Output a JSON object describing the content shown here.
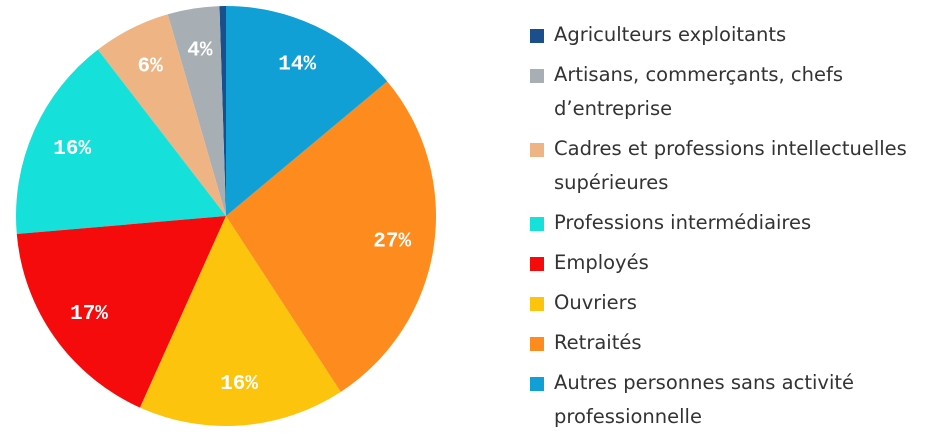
{
  "chart_data": {
    "type": "pie",
    "categories": [
      "Agriculteurs exploitants",
      "Artisans, commerçants, chefs d’entreprise",
      "Cadres et professions intellectuelles supérieures",
      "Professions intermédiaires",
      "Employés",
      "Ouvriers",
      "Retraités",
      "Autres personnes sans activité professionnelle"
    ],
    "values": [
      0.5,
      4,
      6,
      16,
      17,
      16,
      27,
      14
    ],
    "value_labels": [
      null,
      "4%",
      "6%",
      "16%",
      "17%",
      "16%",
      "27%",
      "14%"
    ],
    "colors": [
      "#1b4f8c",
      "#a7afb4",
      "#efb483",
      "#16e0da",
      "#f50b0b",
      "#fcc40d",
      "#fd8b1d",
      "#10a0d6"
    ],
    "legend": "right"
  }
}
